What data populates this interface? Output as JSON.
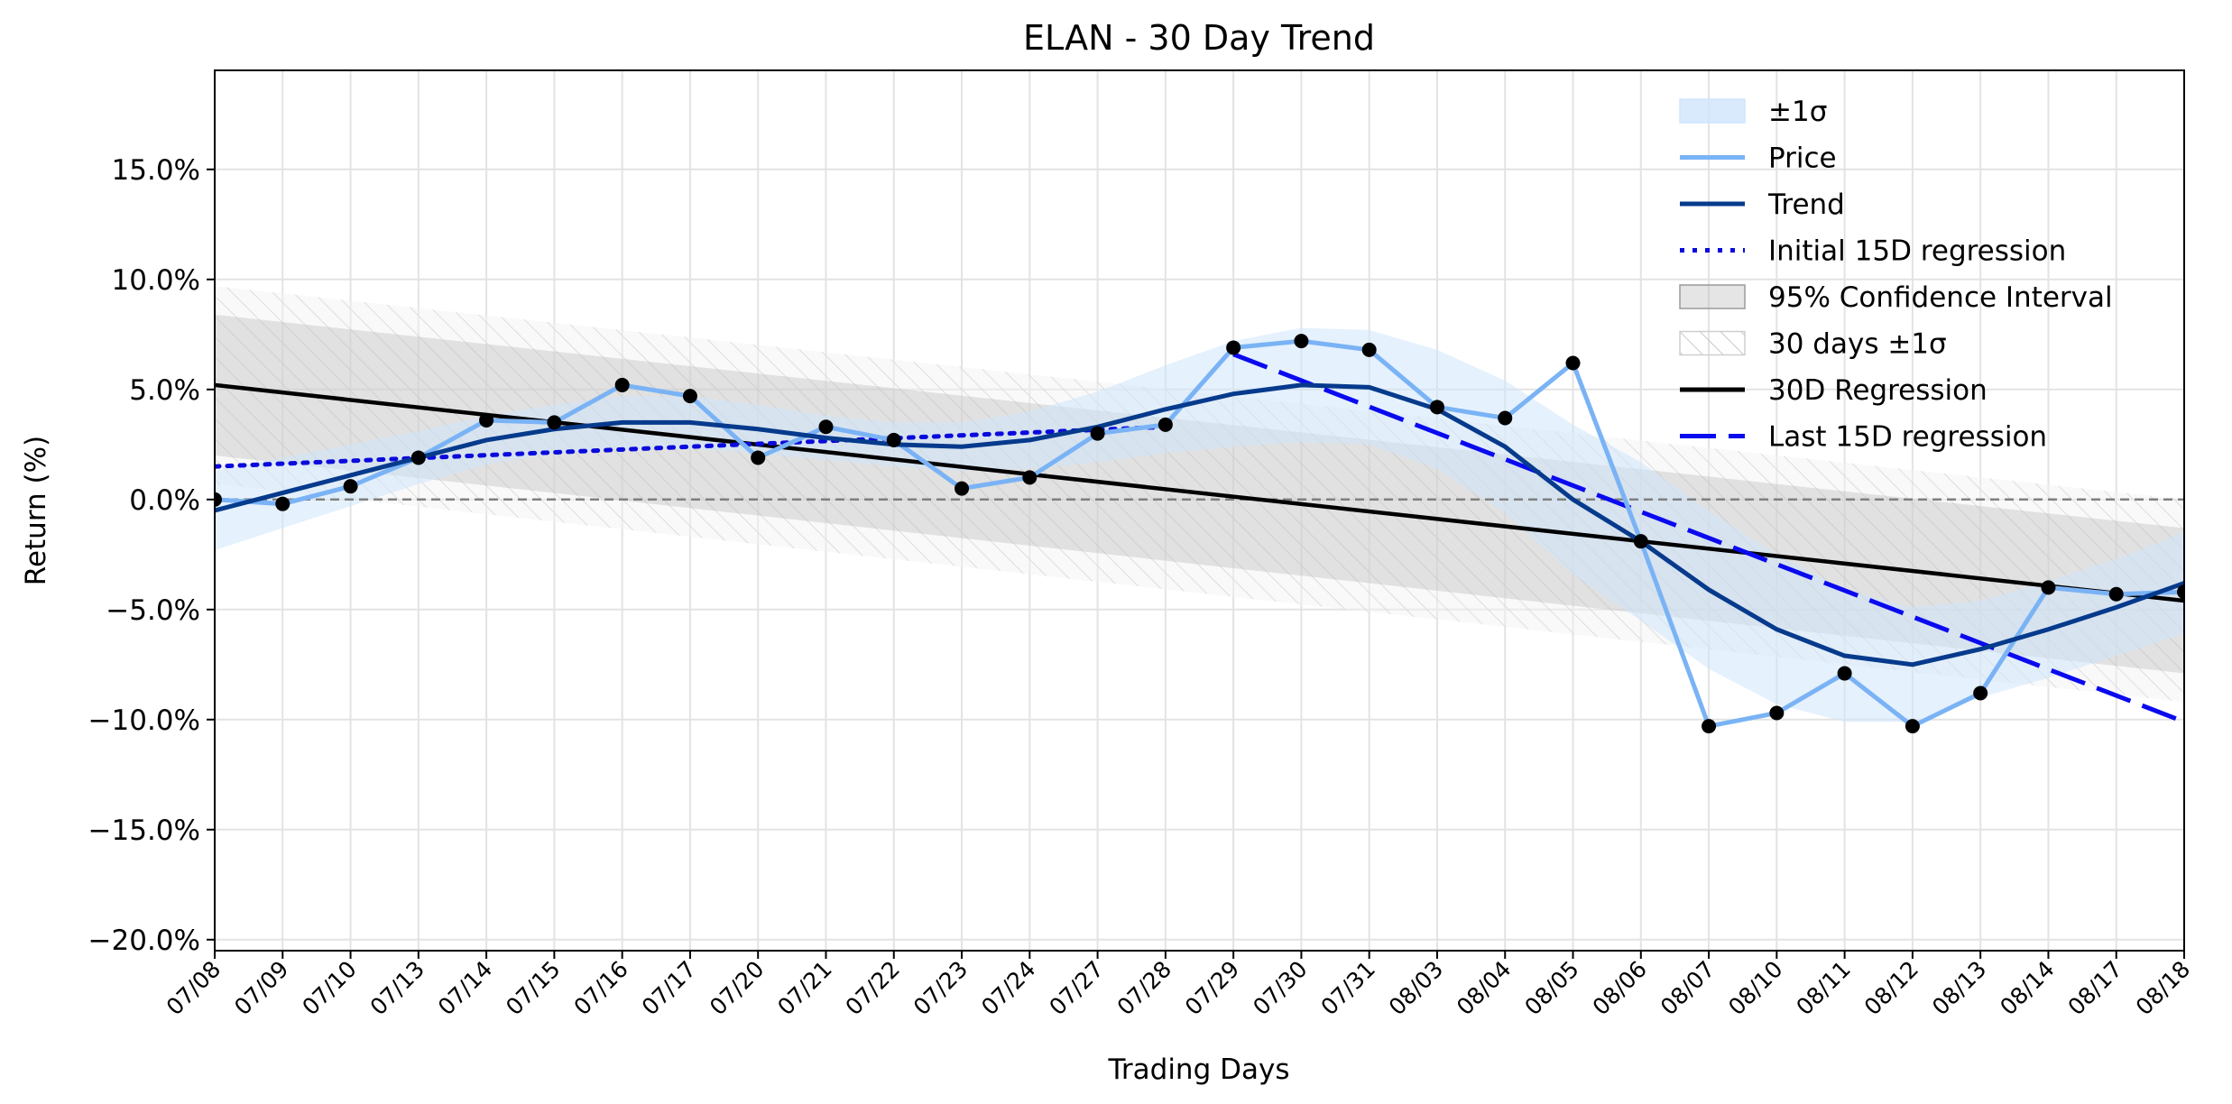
{
  "chart_data": {
    "type": "line",
    "title": "ELAN - 30 Day Trend",
    "xlabel": "Trading Days",
    "ylabel": "Return (%)",
    "ylim": [
      -20.5,
      19.5
    ],
    "yticks": [
      -20,
      -15,
      -10,
      -5,
      0,
      5,
      10,
      15
    ],
    "ytick_labels": [
      "−20.0%",
      "−15.0%",
      "−10.0%",
      "−5.0%",
      "0.0%",
      "5.0%",
      "10.0%",
      "15.0%"
    ],
    "grid": true,
    "legend_position": "top-right",
    "categories": [
      "07/08",
      "07/09",
      "07/10",
      "07/13",
      "07/14",
      "07/15",
      "07/16",
      "07/17",
      "07/20",
      "07/21",
      "07/22",
      "07/23",
      "07/24",
      "07/27",
      "07/28",
      "07/29",
      "07/30",
      "07/31",
      "08/03",
      "08/04",
      "08/05",
      "08/06",
      "08/07",
      "08/10",
      "08/11",
      "08/12",
      "08/13",
      "08/14",
      "08/17",
      "08/18"
    ],
    "price": [
      0.0,
      -0.2,
      0.6,
      1.9,
      3.6,
      3.5,
      5.2,
      4.7,
      1.9,
      3.3,
      2.7,
      0.5,
      1.0,
      3.0,
      3.4,
      6.9,
      7.2,
      6.8,
      4.2,
      3.7,
      6.2,
      -1.9,
      -10.3,
      -9.7,
      -7.9,
      -10.3,
      -8.8,
      -4.0,
      -4.3,
      -4.2
    ],
    "trend": [
      -0.5,
      0.3,
      1.1,
      1.9,
      2.7,
      3.2,
      3.5,
      3.5,
      3.2,
      2.8,
      2.5,
      2.4,
      2.7,
      3.3,
      4.1,
      4.8,
      5.2,
      5.1,
      4.1,
      2.4,
      0.0,
      -1.9,
      -4.1,
      -5.9,
      -7.1,
      -7.5,
      -6.8,
      -5.9,
      -4.9,
      -3.8
    ],
    "sigma_band": [
      1.8,
      1.6,
      1.4,
      1.2,
      1.1,
      1.1,
      1.2,
      1.2,
      1.1,
      1.0,
      1.0,
      1.1,
      1.3,
      1.6,
      2.0,
      2.4,
      2.6,
      2.6,
      2.7,
      3.0,
      3.4,
      3.6,
      3.6,
      3.4,
      3.0,
      2.6,
      2.2,
      2.2,
      2.2,
      2.3
    ],
    "regression_30d": {
      "start": 5.2,
      "end": -4.6
    },
    "confidence_95": {
      "start_upper": 8.4,
      "start_lower": 2.0,
      "end_upper": -1.3,
      "end_lower": -7.9
    },
    "band_30d_sigma": {
      "start_upper": 9.7,
      "start_lower": 0.7,
      "end_upper": 0.0,
      "end_lower": -9.2
    },
    "initial_15d_regression": {
      "start": 1.5,
      "end": 3.3
    },
    "last_15d_regression": {
      "start": 6.6,
      "end": -10.1
    },
    "zero_line": 0,
    "legend": [
      "±1σ",
      "Price",
      "Trend",
      "Initial 15D regression",
      "95% Confidence Interval",
      "30 days ±1σ",
      "30D Regression",
      "Last 15D regression"
    ],
    "colors": {
      "price": "#7ab3f5",
      "trend": "#063a8c",
      "sigma_band": "#cfe5fb",
      "initial_reg": "#0a0adc",
      "last_reg": "#0a0aef",
      "regression": "#000000",
      "ci": "#b0b0b0",
      "markers": "#000000",
      "zero": "#808080"
    }
  }
}
